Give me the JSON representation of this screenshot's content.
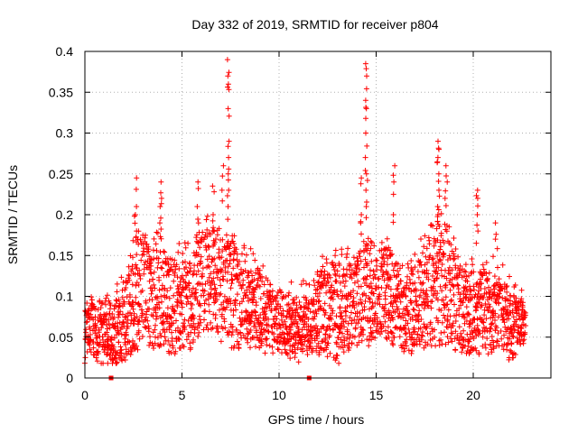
{
  "chart_data": {
    "type": "scatter",
    "title": "Day 332 of 2019, SRMTID for receiver p804",
    "xlabel": "GPS time / hours",
    "ylabel": "SRMTID / TECUs",
    "xlim": [
      0,
      24
    ],
    "ylim": [
      0,
      0.4
    ],
    "xticks": [
      0,
      5,
      10,
      15,
      20
    ],
    "xtick_labels": [
      "0",
      "5",
      "10",
      "15",
      "20"
    ],
    "yticks": [
      0,
      0.05,
      0.1,
      0.15,
      0.2,
      0.25,
      0.3,
      0.35,
      0.4
    ],
    "ytick_labels": [
      "0",
      "0.05",
      "0.1",
      "0.15",
      "0.2",
      "0.25",
      "0.3",
      "0.35",
      "0.4"
    ],
    "grid": true,
    "marker": "+",
    "color": "#ff0000",
    "zero_markers_x": [
      1.35,
      11.55
    ],
    "envelope": {
      "description": "approximate spread of the dense scatter: [hour, typical_low, typical_high]",
      "points": [
        [
          0.0,
          0.03,
          0.08
        ],
        [
          0.5,
          0.03,
          0.09
        ],
        [
          1.0,
          0.02,
          0.09
        ],
        [
          1.5,
          0.02,
          0.08
        ],
        [
          2.0,
          0.03,
          0.1
        ],
        [
          2.5,
          0.04,
          0.15
        ],
        [
          3.0,
          0.06,
          0.17
        ],
        [
          3.5,
          0.05,
          0.15
        ],
        [
          4.0,
          0.05,
          0.16
        ],
        [
          4.5,
          0.04,
          0.13
        ],
        [
          5.0,
          0.05,
          0.14
        ],
        [
          5.5,
          0.05,
          0.14
        ],
        [
          6.0,
          0.07,
          0.17
        ],
        [
          6.5,
          0.07,
          0.17
        ],
        [
          7.0,
          0.06,
          0.16
        ],
        [
          7.5,
          0.05,
          0.17
        ],
        [
          8.0,
          0.05,
          0.14
        ],
        [
          8.5,
          0.05,
          0.13
        ],
        [
          9.0,
          0.05,
          0.12
        ],
        [
          9.5,
          0.04,
          0.11
        ],
        [
          10.0,
          0.04,
          0.1
        ],
        [
          10.5,
          0.04,
          0.1
        ],
        [
          11.0,
          0.03,
          0.09
        ],
        [
          11.5,
          0.04,
          0.1
        ],
        [
          12.0,
          0.04,
          0.12
        ],
        [
          12.5,
          0.04,
          0.13
        ],
        [
          13.0,
          0.03,
          0.13
        ],
        [
          13.5,
          0.04,
          0.13
        ],
        [
          14.0,
          0.05,
          0.14
        ],
        [
          14.5,
          0.05,
          0.16
        ],
        [
          15.0,
          0.06,
          0.15
        ],
        [
          15.5,
          0.06,
          0.15
        ],
        [
          16.0,
          0.05,
          0.14
        ],
        [
          16.5,
          0.04,
          0.12
        ],
        [
          17.0,
          0.04,
          0.14
        ],
        [
          17.5,
          0.05,
          0.15
        ],
        [
          18.0,
          0.06,
          0.18
        ],
        [
          18.5,
          0.06,
          0.18
        ],
        [
          19.0,
          0.05,
          0.15
        ],
        [
          19.5,
          0.04,
          0.13
        ],
        [
          20.0,
          0.04,
          0.12
        ],
        [
          20.5,
          0.04,
          0.12
        ],
        [
          21.0,
          0.04,
          0.12
        ],
        [
          21.5,
          0.04,
          0.11
        ],
        [
          22.0,
          0.03,
          0.1
        ],
        [
          22.5,
          0.04,
          0.09
        ],
        [
          22.7,
          0.05,
          0.08
        ]
      ]
    },
    "peaks": [
      {
        "x": 2.6,
        "values": [
          0.245,
          0.21,
          0.2,
          0.18
        ]
      },
      {
        "x": 3.9,
        "values": [
          0.24,
          0.22,
          0.21,
          0.19
        ]
      },
      {
        "x": 5.8,
        "values": [
          0.24,
          0.21,
          0.19
        ]
      },
      {
        "x": 6.6,
        "values": [
          0.235,
          0.2,
          0.18
        ]
      },
      {
        "x": 7.4,
        "values": [
          0.39,
          0.37,
          0.36,
          0.33,
          0.29,
          0.27,
          0.25,
          0.23,
          0.21
        ]
      },
      {
        "x": 7.1,
        "values": [
          0.26,
          0.23
        ]
      },
      {
        "x": 14.5,
        "values": [
          0.385,
          0.37,
          0.34,
          0.33,
          0.3,
          0.27,
          0.25,
          0.23,
          0.21
        ]
      },
      {
        "x": 14.2,
        "values": [
          0.245,
          0.2,
          0.19
        ]
      },
      {
        "x": 15.9,
        "values": [
          0.26,
          0.24,
          0.2
        ]
      },
      {
        "x": 18.2,
        "values": [
          0.29,
          0.28,
          0.27,
          0.25,
          0.23,
          0.21,
          0.2
        ]
      },
      {
        "x": 18.6,
        "values": [
          0.26,
          0.24,
          0.22
        ]
      },
      {
        "x": 20.2,
        "values": [
          0.23,
          0.22,
          0.2,
          0.18
        ]
      },
      {
        "x": 21.2,
        "values": [
          0.19,
          0.17
        ]
      }
    ]
  }
}
